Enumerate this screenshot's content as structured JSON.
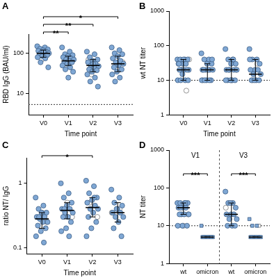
{
  "chart_data": [
    {
      "panel": "A",
      "type": "scatter",
      "y_label": "RBD IgG (BAU/ml)",
      "x_label": "Time point",
      "categories": [
        "V0",
        "V1",
        "V2",
        "V3"
      ],
      "log": "y",
      "grid": false,
      "ylim": [
        3,
        300
      ],
      "yticks": [
        10,
        100
      ],
      "threshold": 5.4,
      "series": [
        {
          "color": "#7fa7d4",
          "marker": "circle",
          "values": [
            [
              150,
              140,
              130,
              125,
              120,
              115,
              110,
              105,
              100,
              100,
              95,
              90,
              85,
              80,
              75,
              60,
              45,
              110
            ],
            [
              140,
              110,
              95,
              90,
              85,
              80,
              75,
              70,
              70,
              65,
              60,
              60,
              55,
              50,
              45,
              40,
              35,
              25
            ],
            [
              110,
              95,
              80,
              70,
              65,
              60,
              55,
              50,
              48,
              45,
              40,
              38,
              35,
              30,
              25,
              20,
              15,
              55
            ],
            [
              140,
              120,
              100,
              95,
              85,
              75,
              65,
              60,
              55,
              50,
              45,
              40,
              35,
              30,
              25,
              20
            ]
          ]
        },
        {
          "color": "#ffffff",
          "marker": "circle",
          "values": [
            [
              120,
              105,
              70
            ],
            [
              80,
              60,
              50
            ],
            [
              70,
              45,
              30
            ],
            [
              60,
              40
            ]
          ]
        }
      ],
      "medians": [
        100,
        65,
        50,
        55
      ],
      "iqr": [
        [
          80,
          120
        ],
        [
          50,
          85
        ],
        [
          35,
          70
        ],
        [
          35,
          85
        ]
      ],
      "significance": [
        {
          "from": 0,
          "to": 1,
          "label": "**"
        },
        {
          "from": 0,
          "to": 2,
          "label": "**"
        },
        {
          "from": 0,
          "to": 3,
          "label": "*"
        }
      ]
    },
    {
      "panel": "B",
      "type": "scatter",
      "y_label": "wt NT titer",
      "x_label": "Time point",
      "categories": [
        "V0",
        "V1",
        "V2",
        "V3"
      ],
      "log": "y",
      "grid": false,
      "ylim": [
        1,
        1000
      ],
      "yticks": [
        1,
        10,
        100,
        1000
      ],
      "threshold": 10,
      "series": [
        {
          "color": "#7fa7d4",
          "marker": "circle",
          "values": [
            [
              40,
              40,
              40,
              40,
              30,
              30,
              30,
              20,
              20,
              20,
              20,
              20,
              15,
              10,
              10,
              10,
              10,
              40,
              30
            ],
            [
              60,
              40,
              40,
              30,
              30,
              20,
              20,
              20,
              20,
              20,
              20,
              10,
              10,
              10,
              10,
              10,
              40
            ],
            [
              80,
              40,
              40,
              30,
              30,
              20,
              20,
              20,
              20,
              10,
              10,
              10,
              10,
              10,
              40,
              20
            ],
            [
              80,
              40,
              40,
              30,
              20,
              20,
              20,
              15,
              15,
              10,
              10,
              10,
              10,
              40
            ]
          ]
        },
        {
          "color": "#ffffff",
          "marker": "circle",
          "values": [
            [
              5,
              20,
              40
            ],
            [
              20,
              10
            ],
            [
              20,
              10
            ],
            [
              30,
              10
            ]
          ]
        }
      ],
      "medians": [
        20,
        20,
        20,
        15
      ],
      "iqr": [
        [
          10,
          40
        ],
        [
          10,
          30
        ],
        [
          10,
          40
        ],
        [
          10,
          40
        ]
      ],
      "significance": []
    },
    {
      "panel": "C",
      "type": "scatter",
      "y_label": "ratio NT/ IgG",
      "x_label": "Time point",
      "categories": [
        "V0",
        "V1",
        "V2",
        "V3"
      ],
      "log": "y",
      "grid": false,
      "ylim": [
        0.08,
        2.5
      ],
      "yticks": [
        0.1,
        1
      ],
      "series": [
        {
          "color": "#7fa7d4",
          "marker": "circle",
          "values": [
            [
              0.6,
              0.45,
              0.4,
              0.35,
              0.35,
              0.3,
              0.3,
              0.28,
              0.25,
              0.25,
              0.22,
              0.2,
              0.18,
              0.15,
              0.12,
              0.3
            ],
            [
              1.0,
              0.7,
              0.6,
              0.5,
              0.45,
              0.4,
              0.4,
              0.35,
              0.35,
              0.3,
              0.3,
              0.25,
              0.2,
              0.18,
              0.15,
              0.4
            ],
            [
              1.1,
              0.9,
              0.7,
              0.6,
              0.55,
              0.5,
              0.45,
              0.4,
              0.4,
              0.35,
              0.3,
              0.25,
              0.2,
              0.15,
              0.6
            ],
            [
              0.8,
              0.6,
              0.5,
              0.45,
              0.4,
              0.35,
              0.35,
              0.3,
              0.3,
              0.25,
              0.2,
              0.15,
              0.4
            ]
          ]
        },
        {
          "color": "#ffffff",
          "marker": "circle",
          "values": [
            [
              0.25,
              0.35
            ],
            [
              0.3,
              0.5
            ],
            [
              0.5,
              0.3
            ],
            [
              0.35,
              0.4
            ]
          ]
        }
      ],
      "medians": [
        0.28,
        0.38,
        0.42,
        0.35
      ],
      "iqr": [
        [
          0.2,
          0.35
        ],
        [
          0.28,
          0.5
        ],
        [
          0.3,
          0.6
        ],
        [
          0.25,
          0.5
        ]
      ],
      "significance": [
        {
          "from": 0,
          "to": 2,
          "label": "*"
        }
      ]
    },
    {
      "panel": "D",
      "type": "scatter",
      "y_label": "NT titer",
      "categories": [
        "wt",
        "omicron",
        "wt",
        "omicron"
      ],
      "log": "y",
      "grid": false,
      "ylim": [
        1,
        1000
      ],
      "yticks": [
        1,
        10,
        100,
        1000
      ],
      "threshold": 10,
      "groups": [
        {
          "label": "V1",
          "from": 0,
          "to": 1
        },
        {
          "label": "V3",
          "from": 2,
          "to": 3
        }
      ],
      "series": [
        {
          "color": "#7fa7d4",
          "marker": "circle",
          "values": [
            [
              40,
              40,
              40,
              40,
              30,
              30,
              30,
              20,
              20,
              20,
              20,
              10,
              10,
              10,
              40,
              30
            ],
            [],
            [
              80,
              40,
              40,
              30,
              20,
              20,
              20,
              15,
              15,
              10,
              10,
              10,
              40
            ],
            []
          ]
        },
        {
          "color": "#ffffff",
          "marker": "circle",
          "values": [
            [
              20,
              10
            ],
            [],
            [
              30
            ],
            []
          ]
        },
        {
          "color": "#7fa7d4",
          "marker": "square",
          "values": [
            [],
            [
              10,
              5,
              5,
              5,
              5,
              5,
              5,
              5,
              5,
              5,
              5,
              5
            ],
            [],
            [
              15,
              10,
              10,
              5,
              5,
              5,
              5,
              5,
              5,
              5,
              5
            ]
          ]
        },
        {
          "color": "#ffffff",
          "marker": "square",
          "values": [
            [],
            [],
            [],
            [
              10
            ]
          ]
        }
      ],
      "medians": [
        30,
        5,
        20,
        5
      ],
      "iqr": [
        [
          20,
          40
        ],
        [
          5,
          5
        ],
        [
          10,
          40
        ],
        [
          5,
          5
        ]
      ],
      "significance": [
        {
          "from": 0,
          "to": 1,
          "label": "***"
        },
        {
          "from": 2,
          "to": 3,
          "label": "***"
        }
      ]
    }
  ]
}
